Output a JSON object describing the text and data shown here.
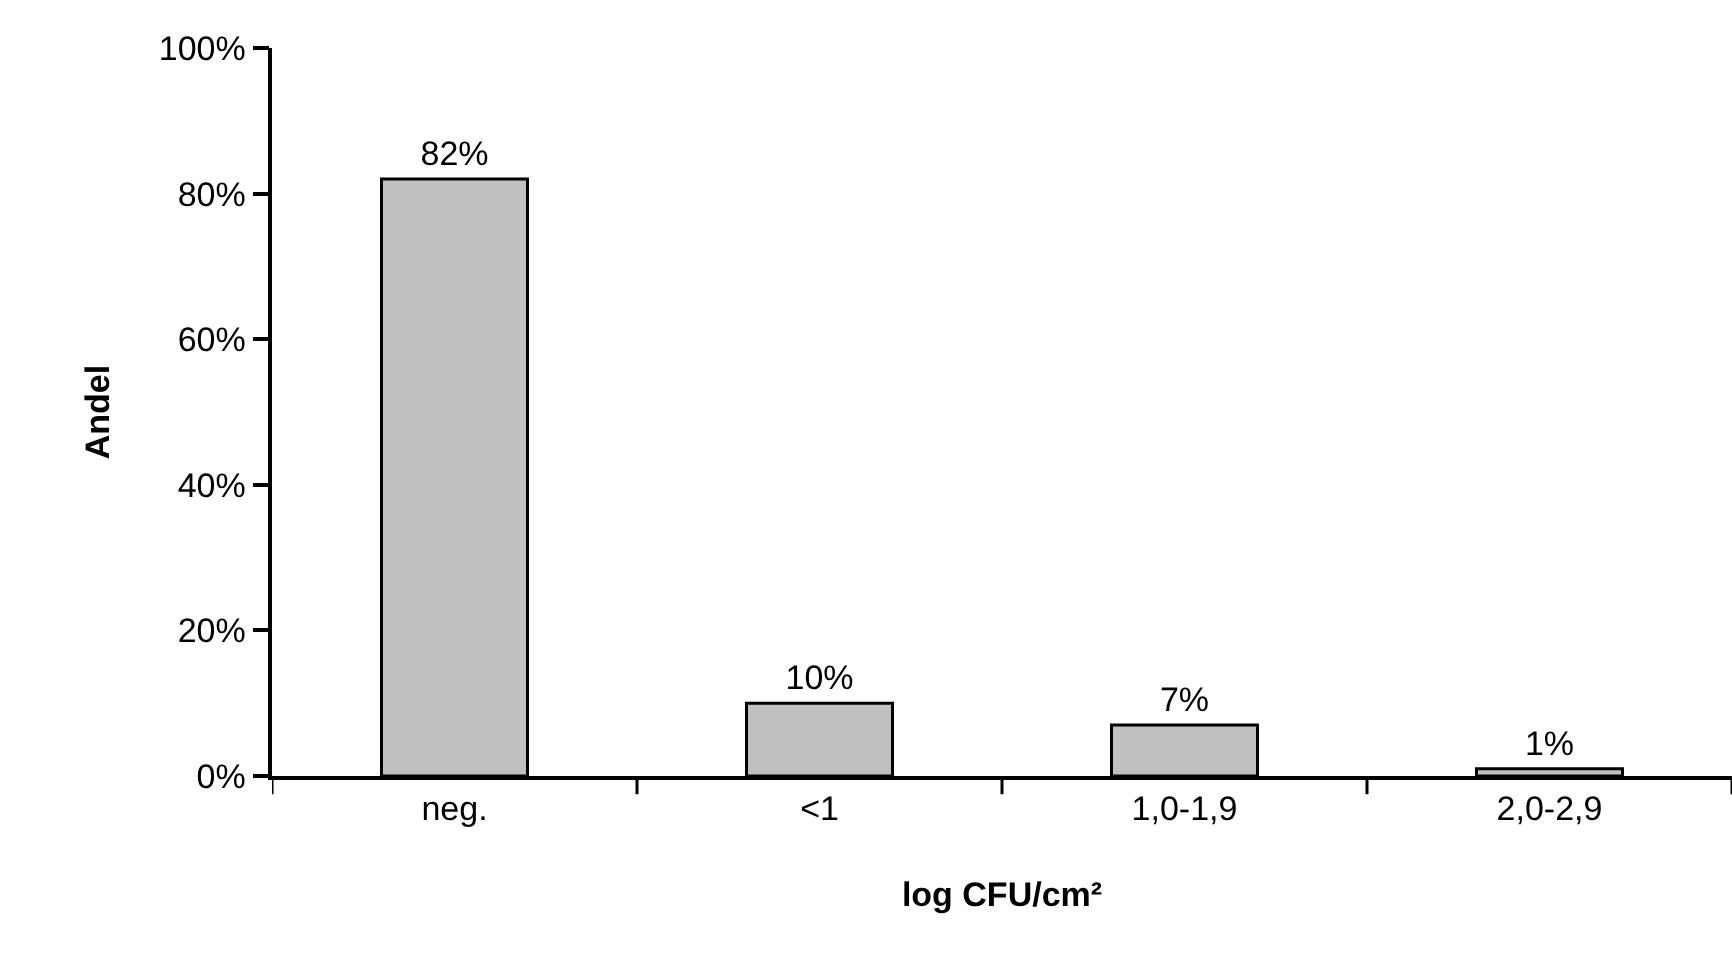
{
  "chart_data": {
    "type": "bar",
    "xlabel": "log CFU/cm²",
    "ylabel": "Andel",
    "categories": [
      "neg.",
      "<1",
      "1,0-1,9",
      "2,0-2,9"
    ],
    "values": [
      82,
      10,
      7,
      1
    ],
    "value_labels": [
      "82%",
      "10%",
      "7%",
      "1%"
    ],
    "color": "#c0c0c0",
    "ylim": [
      0,
      100
    ],
    "yticks": [
      {
        "value": 0,
        "label": "0%"
      },
      {
        "value": 20,
        "label": "20%"
      },
      {
        "value": 40,
        "label": "40%"
      },
      {
        "value": 60,
        "label": "60%"
      },
      {
        "value": 80,
        "label": "80%"
      },
      {
        "value": 100,
        "label": "100%"
      }
    ],
    "grid": false
  }
}
